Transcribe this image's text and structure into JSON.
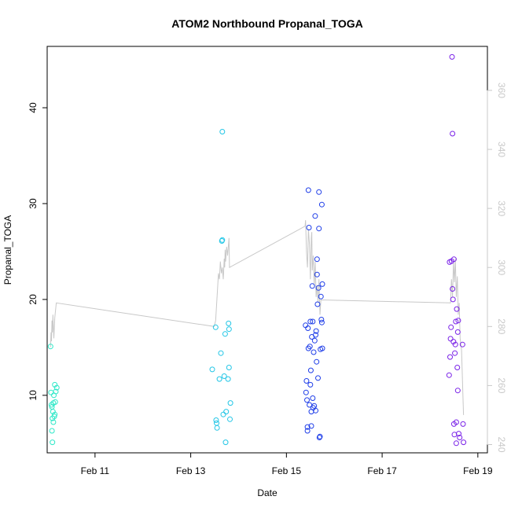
{
  "chart_data": {
    "type": "scatter",
    "title": "ATOM2 Northbound Propanal_TOGA",
    "xlabel": "Date",
    "ylabel": "Propanal_TOGA",
    "x_unit": "days in February",
    "xlim": [
      10.0,
      19.2
    ],
    "ylim": [
      4.0,
      46.4
    ],
    "x_ticks": [
      11,
      13,
      15,
      17,
      19
    ],
    "x_tick_labels": [
      "Feb 11",
      "Feb 13",
      "Feb 15",
      "Feb 17",
      "Feb 19"
    ],
    "y_ticks": [
      10,
      20,
      30,
      40
    ],
    "y_tick_labels": [
      "10",
      "20",
      "30",
      "40"
    ],
    "y2lim": [
      237.2,
      374.9
    ],
    "y2_ticks": [
      240,
      260,
      280,
      300,
      320,
      340,
      360
    ],
    "y2_tick_labels": [
      "240",
      "260",
      "280",
      "300",
      "320",
      "340",
      "360"
    ],
    "line_color": "#c8c8c8",
    "grid": false,
    "series": [
      {
        "color": "#2ee8c8",
        "points": [
          [
            10.07,
            15.1
          ],
          [
            10.08,
            10.3
          ],
          [
            10.09,
            9.0
          ],
          [
            10.1,
            8.8
          ],
          [
            10.11,
            7.6
          ],
          [
            10.12,
            8.3
          ],
          [
            10.13,
            9.2
          ],
          [
            10.14,
            10.0
          ],
          [
            10.15,
            7.8
          ],
          [
            10.16,
            11.1
          ],
          [
            10.18,
            10.4
          ],
          [
            10.2,
            10.8
          ],
          [
            10.1,
            6.3
          ],
          [
            10.11,
            5.1
          ],
          [
            10.13,
            7.2
          ],
          [
            10.16,
            8.0
          ],
          [
            10.17,
            9.3
          ]
        ]
      },
      {
        "color": "#22c6e6",
        "points": [
          [
            13.45,
            12.7
          ],
          [
            13.52,
            17.1
          ],
          [
            13.53,
            7.4
          ],
          [
            13.54,
            7.1
          ],
          [
            13.55,
            6.6
          ],
          [
            13.6,
            11.7
          ],
          [
            13.63,
            14.4
          ],
          [
            13.65,
            26.1
          ],
          [
            13.66,
            26.2
          ],
          [
            13.66,
            37.5
          ],
          [
            13.68,
            8.0
          ],
          [
            13.7,
            12.0
          ],
          [
            13.72,
            16.4
          ],
          [
            13.73,
            5.1
          ],
          [
            13.74,
            8.3
          ],
          [
            13.78,
            11.7
          ],
          [
            13.79,
            17.5
          ],
          [
            13.8,
            16.9
          ],
          [
            13.8,
            12.9
          ],
          [
            13.82,
            7.5
          ],
          [
            13.83,
            9.2
          ]
        ]
      },
      {
        "color": "#1f3ee8",
        "points": [
          [
            15.4,
            17.3
          ],
          [
            15.41,
            10.3
          ],
          [
            15.42,
            11.5
          ],
          [
            15.43,
            9.5
          ],
          [
            15.44,
            6.7
          ],
          [
            15.44,
            6.3
          ],
          [
            15.45,
            17.0
          ],
          [
            15.46,
            14.9
          ],
          [
            15.46,
            31.4
          ],
          [
            15.47,
            27.5
          ],
          [
            15.48,
            9.0
          ],
          [
            15.49,
            15.1
          ],
          [
            15.5,
            17.7
          ],
          [
            15.5,
            11.1
          ],
          [
            15.51,
            12.6
          ],
          [
            15.52,
            8.3
          ],
          [
            15.52,
            6.8
          ],
          [
            15.53,
            16.1
          ],
          [
            15.54,
            21.4
          ],
          [
            15.55,
            17.7
          ],
          [
            15.55,
            9.7
          ],
          [
            15.56,
            8.7
          ],
          [
            15.57,
            14.5
          ],
          [
            15.58,
            8.9
          ],
          [
            15.59,
            15.7
          ],
          [
            15.6,
            28.7
          ],
          [
            15.61,
            16.3
          ],
          [
            15.61,
            8.4
          ],
          [
            15.62,
            16.7
          ],
          [
            15.63,
            13.5
          ],
          [
            15.64,
            24.2
          ],
          [
            15.64,
            22.6
          ],
          [
            15.65,
            19.5
          ],
          [
            15.66,
            11.8
          ],
          [
            15.67,
            21.2
          ],
          [
            15.68,
            27.4
          ],
          [
            15.68,
            31.2
          ],
          [
            15.69,
            5.6
          ],
          [
            15.7,
            5.7
          ],
          [
            15.71,
            14.8
          ],
          [
            15.72,
            20.3
          ],
          [
            15.73,
            17.9
          ],
          [
            15.74,
            17.6
          ],
          [
            15.74,
            29.9
          ],
          [
            15.75,
            21.6
          ],
          [
            15.75,
            14.9
          ]
        ]
      },
      {
        "color": "#7a22e8",
        "points": [
          [
            18.4,
            12.1
          ],
          [
            18.41,
            23.9
          ],
          [
            18.42,
            14.0
          ],
          [
            18.43,
            15.9
          ],
          [
            18.44,
            17.1
          ],
          [
            18.45,
            24.0
          ],
          [
            18.46,
            45.3
          ],
          [
            18.47,
            37.3
          ],
          [
            18.47,
            21.1
          ],
          [
            18.48,
            20.0
          ],
          [
            18.49,
            15.6
          ],
          [
            18.5,
            24.2
          ],
          [
            18.5,
            7.0
          ],
          [
            18.51,
            5.9
          ],
          [
            18.52,
            14.4
          ],
          [
            18.53,
            15.3
          ],
          [
            18.54,
            17.7
          ],
          [
            18.55,
            7.2
          ],
          [
            18.55,
            5.0
          ],
          [
            18.56,
            19.0
          ],
          [
            18.57,
            12.9
          ],
          [
            18.58,
            16.6
          ],
          [
            18.58,
            10.5
          ],
          [
            18.59,
            17.8
          ],
          [
            18.6,
            6.0
          ],
          [
            18.62,
            5.6
          ],
          [
            18.68,
            15.3
          ],
          [
            18.69,
            7.0
          ],
          [
            18.7,
            5.1
          ]
        ]
      }
    ],
    "line": [
      [
        10.07,
        273
      ],
      [
        10.08,
        278
      ],
      [
        10.09,
        275
      ],
      [
        10.1,
        282
      ],
      [
        10.11,
        278
      ],
      [
        10.12,
        284
      ],
      [
        10.13,
        280
      ],
      [
        10.14,
        276
      ],
      [
        10.16,
        283
      ],
      [
        10.19,
        288
      ],
      [
        13.49,
        280
      ],
      [
        13.52,
        282
      ],
      [
        13.55,
        290
      ],
      [
        13.58,
        298
      ],
      [
        13.6,
        296
      ],
      [
        13.62,
        302
      ],
      [
        13.64,
        298
      ],
      [
        13.66,
        300
      ],
      [
        13.68,
        296
      ],
      [
        13.7,
        303
      ],
      [
        13.71,
        300
      ],
      [
        13.72,
        306
      ],
      [
        13.73,
        302
      ],
      [
        13.75,
        307
      ],
      [
        13.77,
        304
      ],
      [
        13.8,
        310
      ],
      [
        13.81,
        300
      ],
      [
        15.39,
        314
      ],
      [
        15.4,
        316
      ],
      [
        15.42,
        305
      ],
      [
        15.44,
        300
      ],
      [
        15.46,
        313
      ],
      [
        15.48,
        308
      ],
      [
        15.5,
        296
      ],
      [
        15.52,
        310
      ],
      [
        15.53,
        312
      ],
      [
        15.54,
        299
      ],
      [
        15.56,
        304
      ],
      [
        15.58,
        294
      ],
      [
        15.6,
        302
      ],
      [
        15.62,
        290
      ],
      [
        15.64,
        294
      ],
      [
        15.66,
        288
      ],
      [
        15.68,
        296
      ],
      [
        15.7,
        284
      ],
      [
        15.72,
        289
      ],
      [
        18.43,
        288
      ],
      [
        18.45,
        296
      ],
      [
        18.47,
        290
      ],
      [
        18.49,
        302
      ],
      [
        18.51,
        295
      ],
      [
        18.53,
        303
      ],
      [
        18.55,
        290
      ],
      [
        18.57,
        297
      ],
      [
        18.59,
        284
      ],
      [
        18.61,
        288
      ],
      [
        18.63,
        276
      ],
      [
        18.66,
        272
      ],
      [
        18.7,
        250
      ]
    ]
  }
}
